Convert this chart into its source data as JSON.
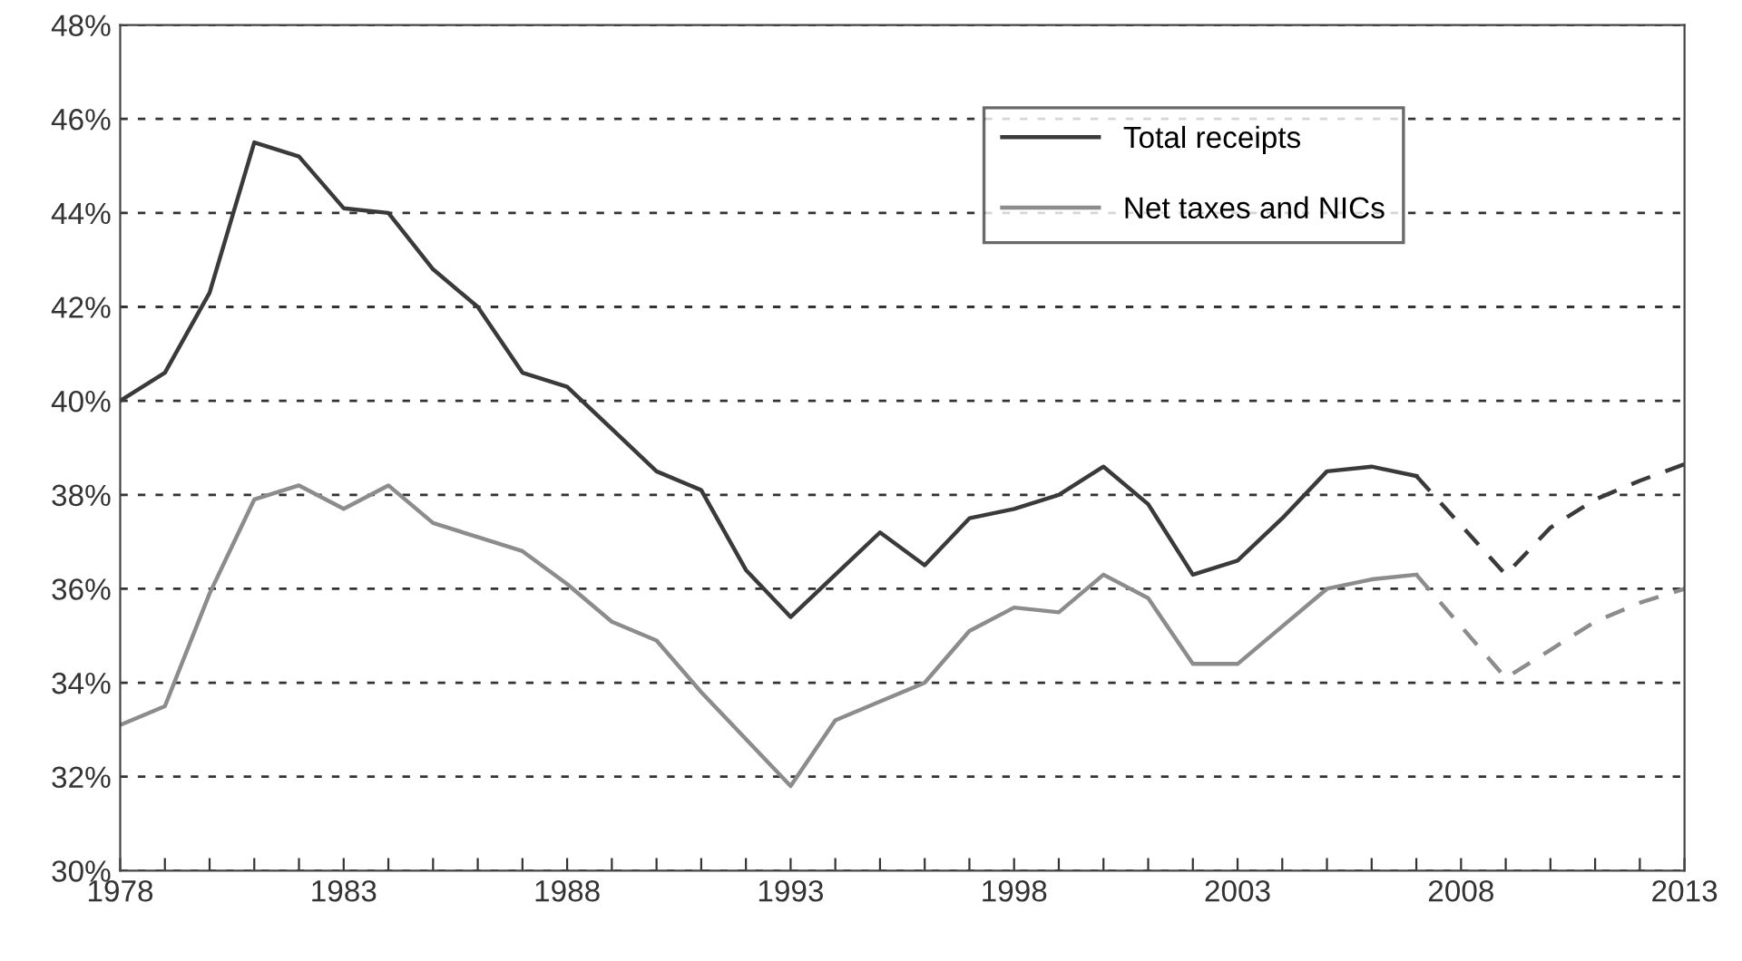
{
  "chart_data": {
    "type": "line",
    "xlim": [
      1978,
      2013
    ],
    "ylim": [
      30,
      48
    ],
    "yticks": [
      {
        "value": 30,
        "label": "30%"
      },
      {
        "value": 32,
        "label": "32%"
      },
      {
        "value": 34,
        "label": "34%"
      },
      {
        "value": 36,
        "label": "36%"
      },
      {
        "value": 38,
        "label": "38%"
      },
      {
        "value": 40,
        "label": "40%"
      },
      {
        "value": 42,
        "label": "42%"
      },
      {
        "value": 44,
        "label": "44%"
      },
      {
        "value": 46,
        "label": "46%"
      },
      {
        "value": 48,
        "label": "48%"
      }
    ],
    "xticks": [
      1978,
      {
        "value": 1979,
        "label": null
      },
      {
        "value": 1980,
        "label": null
      },
      {
        "value": 1981,
        "label": null
      },
      {
        "value": 1982,
        "label": null
      },
      1983,
      {
        "value": 1984,
        "label": null
      },
      {
        "value": 1985,
        "label": null
      },
      {
        "value": 1986,
        "label": null
      },
      {
        "value": 1987,
        "label": null
      },
      1988,
      {
        "value": 1989,
        "label": null
      },
      {
        "value": 1990,
        "label": null
      },
      {
        "value": 1991,
        "label": null
      },
      {
        "value": 1992,
        "label": null
      },
      1993,
      {
        "value": 1994,
        "label": null
      },
      {
        "value": 1995,
        "label": null
      },
      {
        "value": 1996,
        "label": null
      },
      {
        "value": 1997,
        "label": null
      },
      1998,
      {
        "value": 1999,
        "label": null
      },
      {
        "value": 2000,
        "label": null
      },
      {
        "value": 2001,
        "label": null
      },
      {
        "value": 2002,
        "label": null
      },
      2003,
      {
        "value": 2004,
        "label": null
      },
      {
        "value": 2005,
        "label": null
      },
      {
        "value": 2006,
        "label": null
      },
      {
        "value": 2007,
        "label": null
      },
      2008,
      {
        "value": 2009,
        "label": null
      },
      {
        "value": 2010,
        "label": null
      },
      {
        "value": 2011,
        "label": null
      },
      {
        "value": 2012,
        "label": null
      },
      2013
    ],
    "grid": "y",
    "legend": "top right",
    "marker": "none",
    "series": [
      {
        "name": "Total receipts",
        "color": "#3a3a3a",
        "line_style": "solid",
        "x": [
          1978,
          1979,
          1980,
          1981,
          1982,
          1983,
          1984,
          1985,
          1986,
          1987,
          1988,
          1989,
          1990,
          1991,
          1992,
          1993,
          1994,
          1995,
          1996,
          1997,
          1998,
          1999,
          2000,
          2001,
          2002,
          2003,
          2004,
          2005,
          2006,
          2007
        ],
        "values": [
          40.0,
          40.6,
          42.3,
          45.5,
          45.2,
          44.1,
          44.0,
          42.8,
          42.0,
          40.6,
          40.3,
          39.4,
          38.5,
          38.1,
          36.4,
          35.4,
          36.3,
          37.2,
          36.5,
          37.5,
          37.7,
          38.0,
          38.6,
          37.8,
          36.3,
          36.6,
          37.5,
          38.5,
          38.6,
          38.4
        ]
      },
      {
        "name": "Net taxes and NICs",
        "color": "#8c8c8c",
        "line_style": "solid",
        "x": [
          1978,
          1979,
          1980,
          1981,
          1982,
          1983,
          1984,
          1985,
          1986,
          1987,
          1988,
          1989,
          1990,
          1991,
          1992,
          1993,
          1994,
          1995,
          1996,
          1997,
          1998,
          1999,
          2000,
          2001,
          2002,
          2003,
          2004,
          2005,
          2006,
          2007
        ],
        "values": [
          33.1,
          33.5,
          35.9,
          37.9,
          38.2,
          37.7,
          38.2,
          37.4,
          37.1,
          36.8,
          36.1,
          35.3,
          34.9,
          33.8,
          32.8,
          31.8,
          33.2,
          33.6,
          34.0,
          35.1,
          35.6,
          35.5,
          36.3,
          35.8,
          34.4,
          34.4,
          35.2,
          36.0,
          36.2,
          36.3
        ]
      },
      {
        "color": "#3a3a3a",
        "line_style": "dashed",
        "x": [
          2007,
          2009,
          2010,
          2011,
          2012,
          2013
        ],
        "values": [
          38.4,
          36.3,
          37.3,
          37.9,
          38.3,
          38.65
        ]
      },
      {
        "color": "#8c8c8c",
        "line_style": "dashed",
        "x": [
          2007,
          2009,
          2010,
          2011,
          2012,
          2013
        ],
        "values": [
          36.3,
          34.1,
          34.7,
          35.3,
          35.7,
          36.0
        ]
      }
    ]
  }
}
